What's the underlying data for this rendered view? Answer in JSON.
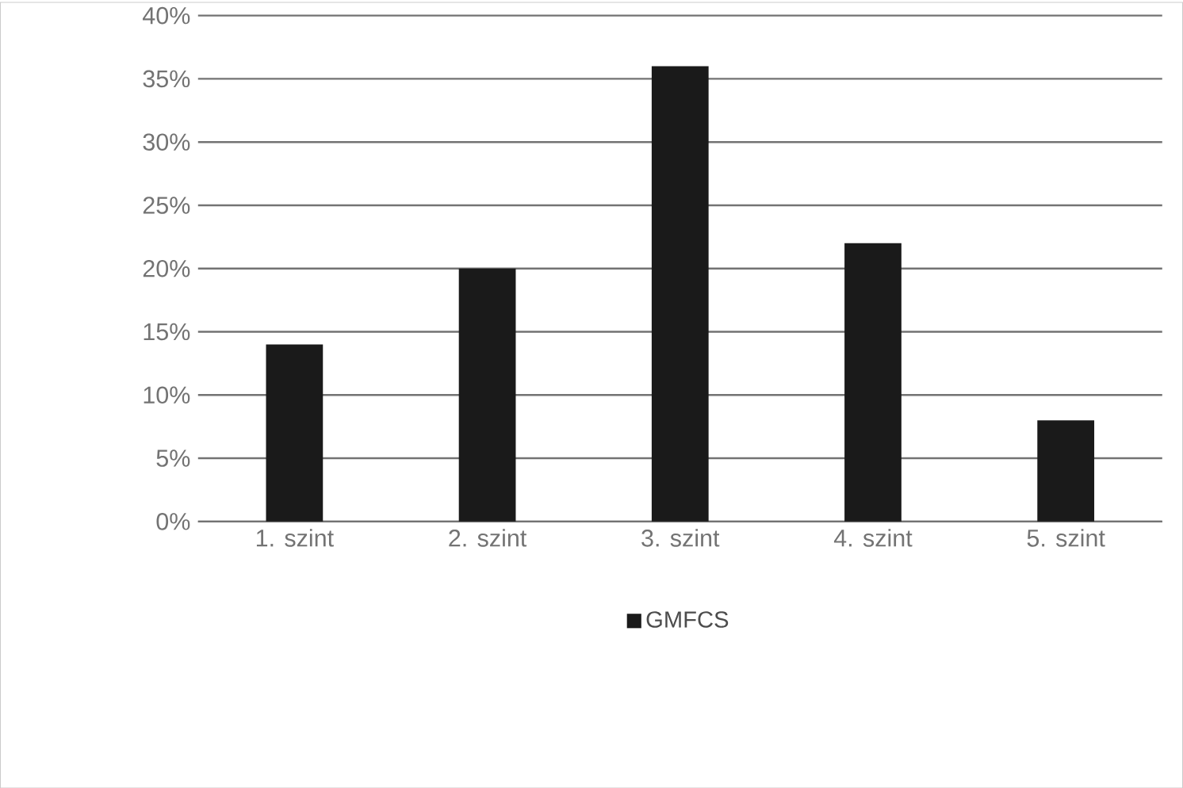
{
  "chart_data": {
    "type": "bar",
    "categories": [
      "1. szint",
      "2. szint",
      "3. szint",
      "4. szint",
      "5. szint"
    ],
    "series": [
      {
        "name": "GMFCS",
        "color": "#1a1a1a",
        "values": [
          14,
          20,
          36,
          22,
          8
        ]
      }
    ],
    "ylim": [
      0,
      40
    ],
    "yticks": [
      {
        "value": 0,
        "label": "0%"
      },
      {
        "value": 5,
        "label": "5%"
      },
      {
        "value": 10,
        "label": "10%"
      },
      {
        "value": 15,
        "label": "15%"
      },
      {
        "value": 20,
        "label": "20%"
      },
      {
        "value": 25,
        "label": "25%"
      },
      {
        "value": 30,
        "label": "30%"
      },
      {
        "value": 35,
        "label": "35%"
      },
      {
        "value": 40,
        "label": "40%"
      }
    ],
    "grid": "y",
    "legend": "bottom"
  }
}
